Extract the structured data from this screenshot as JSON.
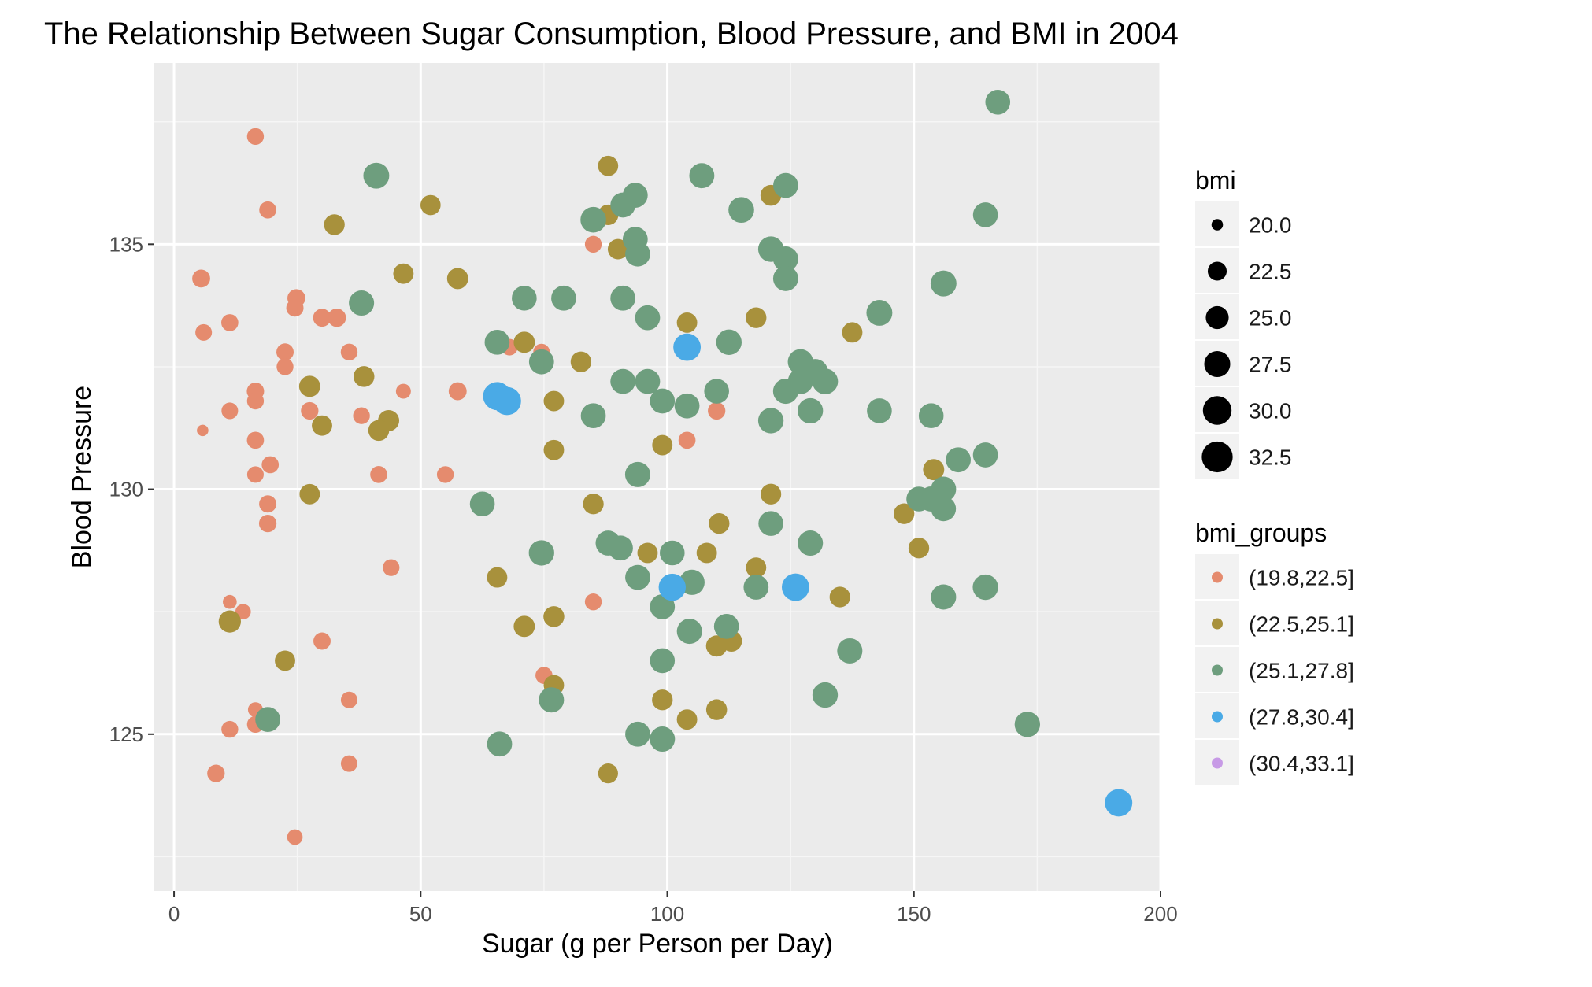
{
  "chart_data": {
    "type": "scatter",
    "title": "The Relationship Between Sugar Consumption, Blood Pressure, and BMI in 2004",
    "xlabel": "Sugar (g per Person per Day)",
    "ylabel": "Blood Pressure",
    "xlim": [
      -4,
      200
    ],
    "ylim": [
      121.8,
      138.7
    ],
    "x_ticks": [
      0,
      50,
      100,
      150,
      200
    ],
    "y_ticks": [
      125,
      130,
      135
    ],
    "grid": true,
    "legend_position": "right",
    "size_legend": {
      "title": "bmi",
      "values": [
        20.0,
        22.5,
        25.0,
        27.5,
        30.0,
        32.5
      ],
      "labels": [
        "20.0",
        "22.5",
        "25.0",
        "27.5",
        "30.0",
        "32.5"
      ]
    },
    "color_legend": {
      "title": "bmi_groups",
      "groups": [
        {
          "label": "(19.8,22.5]",
          "color": "#E58B6E"
        },
        {
          "label": "(22.5,25.1]",
          "color": "#A8913C"
        },
        {
          "label": "(25.1,27.8]",
          "color": "#6E9E7E"
        },
        {
          "label": "(27.8,30.4]",
          "color": "#4AAAE6"
        },
        {
          "label": "(30.4,33.1]",
          "color": "#C79AE6"
        }
      ]
    },
    "points": [
      [
        16.5,
        137.2,
        21.5,
        0
      ],
      [
        5.5,
        134.3,
        22.0,
        0
      ],
      [
        6,
        133.2,
        21.4,
        0
      ],
      [
        5.8,
        131.2,
        20.0,
        0
      ],
      [
        11.3,
        133.4,
        21.6,
        0
      ],
      [
        19,
        135.7,
        21.6,
        0
      ],
      [
        24.8,
        133.9,
        22.0,
        0
      ],
      [
        24.5,
        133.7,
        21.7,
        0
      ],
      [
        30,
        133.5,
        22.0,
        0
      ],
      [
        33,
        133.5,
        22.2,
        0
      ],
      [
        22.5,
        132.8,
        21.7,
        0
      ],
      [
        22.5,
        132.5,
        21.5,
        0
      ],
      [
        16.5,
        132,
        21.7,
        0
      ],
      [
        16.5,
        131.8,
        21.5,
        0
      ],
      [
        11.3,
        131.6,
        21.4,
        0
      ],
      [
        27.5,
        131.6,
        21.8,
        0
      ],
      [
        35.5,
        132.8,
        21.5,
        0
      ],
      [
        38,
        131.5,
        21.5,
        0
      ],
      [
        46.5,
        132,
        20.8,
        0
      ],
      [
        57.5,
        132,
        22.0,
        0
      ],
      [
        16.5,
        131,
        21.6,
        0
      ],
      [
        19.5,
        130.5,
        21.6,
        0
      ],
      [
        16.5,
        130.3,
        21.4,
        0
      ],
      [
        41.5,
        130.3,
        21.6,
        0
      ],
      [
        55,
        130.3,
        21.5,
        0
      ],
      [
        19,
        129.7,
        21.7,
        0
      ],
      [
        19,
        129.3,
        21.8,
        0
      ],
      [
        44,
        128.4,
        21.5,
        0
      ],
      [
        11.3,
        127.7,
        20.5,
        0
      ],
      [
        14,
        127.5,
        21.0,
        0
      ],
      [
        30,
        126.9,
        21.7,
        0
      ],
      [
        16.5,
        125.5,
        20.8,
        0
      ],
      [
        16.5,
        125.2,
        21.5,
        0
      ],
      [
        11.3,
        125.1,
        21.5,
        0
      ],
      [
        35.5,
        125.7,
        21.4,
        0
      ],
      [
        75,
        126.2,
        21.6,
        0
      ],
      [
        85,
        127.7,
        21.5,
        0
      ],
      [
        8.5,
        124.2,
        21.8,
        0
      ],
      [
        35.5,
        124.4,
        21.4,
        0
      ],
      [
        24.5,
        122.9,
        21.0,
        0
      ],
      [
        85,
        135,
        21.5,
        0
      ],
      [
        68,
        132.9,
        21.4,
        0
      ],
      [
        74.5,
        132.8,
        21.4,
        0
      ],
      [
        104,
        131,
        21.6,
        0
      ],
      [
        110,
        131.6,
        21.8,
        0
      ],
      [
        32.5,
        135.4,
        23.5,
        1
      ],
      [
        52,
        135.8,
        23.2,
        1
      ],
      [
        46.5,
        134.4,
        23.3,
        1
      ],
      [
        57.5,
        134.3,
        23.8,
        1
      ],
      [
        88,
        136.6,
        23.2,
        1
      ],
      [
        88,
        135.6,
        23.4,
        1
      ],
      [
        90,
        134.9,
        23.3,
        1
      ],
      [
        121,
        136,
        23.6,
        1
      ],
      [
        104,
        133.4,
        23.3,
        1
      ],
      [
        118,
        133.5,
        23.5,
        1
      ],
      [
        137.5,
        133.2,
        23.3,
        1
      ],
      [
        71,
        133,
        23.8,
        1
      ],
      [
        82.5,
        132.6,
        23.5,
        1
      ],
      [
        38.5,
        132.3,
        23.6,
        1
      ],
      [
        27.5,
        132.1,
        23.8,
        1
      ],
      [
        77,
        131.8,
        23.3,
        1
      ],
      [
        43.5,
        131.4,
        23.8,
        1
      ],
      [
        41.5,
        131.2,
        23.6,
        1
      ],
      [
        30,
        131.3,
        23.3,
        1
      ],
      [
        77,
        130.8,
        23.3,
        1
      ],
      [
        99,
        130.9,
        23.3,
        1
      ],
      [
        27.5,
        129.9,
        23.3,
        1
      ],
      [
        85,
        129.7,
        23.5,
        1
      ],
      [
        121,
        129.9,
        23.5,
        1
      ],
      [
        154,
        130.4,
        23.8,
        1
      ],
      [
        148,
        129.5,
        23.5,
        1
      ],
      [
        110.5,
        129.3,
        23.5,
        1
      ],
      [
        151,
        128.8,
        23.5,
        1
      ],
      [
        96,
        128.7,
        23.3,
        1
      ],
      [
        108,
        128.7,
        23.3,
        1
      ],
      [
        118,
        128.4,
        23.3,
        1
      ],
      [
        65.5,
        128.2,
        23.3,
        1
      ],
      [
        135,
        127.8,
        23.5,
        1
      ],
      [
        11.3,
        127.3,
        24.5,
        1
      ],
      [
        71,
        127.2,
        23.8,
        1
      ],
      [
        77,
        127.4,
        23.6,
        1
      ],
      [
        110,
        126.8,
        23.8,
        1
      ],
      [
        113,
        126.9,
        23.8,
        1
      ],
      [
        22.5,
        126.5,
        23.3,
        1
      ],
      [
        77,
        126,
        23.3,
        1
      ],
      [
        99,
        125.7,
        23.5,
        1
      ],
      [
        104,
        125.3,
        23.3,
        1
      ],
      [
        110,
        125.5,
        23.6,
        1
      ],
      [
        88,
        124.2,
        23.0,
        1
      ],
      [
        167,
        137.9,
        26.5,
        2
      ],
      [
        41,
        136.4,
        27.4,
        2
      ],
      [
        107,
        136.4,
        26.7,
        2
      ],
      [
        124,
        136.2,
        26.6,
        2
      ],
      [
        93.5,
        136,
        26.6,
        2
      ],
      [
        91,
        135.8,
        26.6,
        2
      ],
      [
        115,
        135.7,
        27.2,
        2
      ],
      [
        85,
        135.5,
        27.2,
        2
      ],
      [
        164.5,
        135.6,
        26.5,
        2
      ],
      [
        93.5,
        135.1,
        26.6,
        2
      ],
      [
        94,
        134.8,
        26.6,
        2
      ],
      [
        121,
        134.9,
        27.0,
        2
      ],
      [
        124,
        134.7,
        26.7,
        2
      ],
      [
        124,
        134.3,
        26.7,
        2
      ],
      [
        156,
        134.2,
        27.4,
        2
      ],
      [
        71,
        133.9,
        26.5,
        2
      ],
      [
        79,
        133.9,
        26.6,
        2
      ],
      [
        91,
        133.9,
        26.6,
        2
      ],
      [
        38,
        133.8,
        26.8,
        2
      ],
      [
        96,
        133.5,
        26.6,
        2
      ],
      [
        143,
        133.6,
        27.4,
        2
      ],
      [
        65.5,
        133,
        26.6,
        2
      ],
      [
        74.5,
        132.6,
        26.6,
        2
      ],
      [
        112.5,
        133,
        27.0,
        2
      ],
      [
        127,
        132.6,
        26.9,
        2
      ],
      [
        130,
        132.4,
        26.8,
        2
      ],
      [
        127,
        132.2,
        26.9,
        2
      ],
      [
        91,
        132.2,
        26.6,
        2
      ],
      [
        96,
        132.2,
        26.6,
        2
      ],
      [
        132,
        132.2,
        27.2,
        2
      ],
      [
        124,
        132,
        26.8,
        2
      ],
      [
        110,
        132,
        26.5,
        2
      ],
      [
        99,
        131.8,
        26.6,
        2
      ],
      [
        104,
        131.7,
        26.6,
        2
      ],
      [
        129,
        131.6,
        26.9,
        2
      ],
      [
        143,
        131.6,
        26.5,
        2
      ],
      [
        153.5,
        131.5,
        26.5,
        2
      ],
      [
        85,
        131.5,
        26.6,
        2
      ],
      [
        121,
        131.4,
        27.0,
        2
      ],
      [
        159,
        130.6,
        26.6,
        2
      ],
      [
        164.5,
        130.7,
        26.6,
        2
      ],
      [
        94,
        130.3,
        26.8,
        2
      ],
      [
        62.5,
        129.7,
        26.5,
        2
      ],
      [
        151,
        129.8,
        26.5,
        2
      ],
      [
        153.5,
        129.8,
        26.8,
        2
      ],
      [
        156,
        130,
        26.8,
        2
      ],
      [
        156,
        129.6,
        26.5,
        2
      ],
      [
        121,
        129.3,
        26.5,
        2
      ],
      [
        129,
        128.9,
        26.8,
        2
      ],
      [
        88,
        128.9,
        26.6,
        2
      ],
      [
        90.5,
        128.8,
        26.6,
        2
      ],
      [
        74.5,
        128.7,
        27.0,
        2
      ],
      [
        101,
        128.7,
        26.5,
        2
      ],
      [
        94,
        128.2,
        26.6,
        2
      ],
      [
        105,
        128.1,
        26.9,
        2
      ],
      [
        118,
        128,
        26.6,
        2
      ],
      [
        164.5,
        128,
        27.0,
        2
      ],
      [
        99,
        127.6,
        26.6,
        2
      ],
      [
        156,
        127.8,
        26.8,
        2
      ],
      [
        112,
        127.2,
        26.6,
        2
      ],
      [
        104.5,
        127.1,
        26.8,
        2
      ],
      [
        137,
        126.7,
        26.8,
        2
      ],
      [
        99,
        126.5,
        26.5,
        2
      ],
      [
        76.5,
        125.7,
        26.8,
        2
      ],
      [
        132,
        125.8,
        27.0,
        2
      ],
      [
        19,
        125.3,
        26.6,
        2
      ],
      [
        94,
        125,
        26.6,
        2
      ],
      [
        173,
        125.2,
        27.0,
        2
      ],
      [
        99,
        124.9,
        26.8,
        2
      ],
      [
        66,
        124.8,
        26.6,
        2
      ],
      [
        104,
        132.9,
        28.8,
        3
      ],
      [
        65.5,
        131.9,
        29.5,
        3
      ],
      [
        67.5,
        131.8,
        29.5,
        3
      ],
      [
        101,
        128,
        28.5,
        3
      ],
      [
        126,
        128,
        28.8,
        3
      ],
      [
        191.5,
        123.6,
        28.8,
        3
      ]
    ]
  }
}
